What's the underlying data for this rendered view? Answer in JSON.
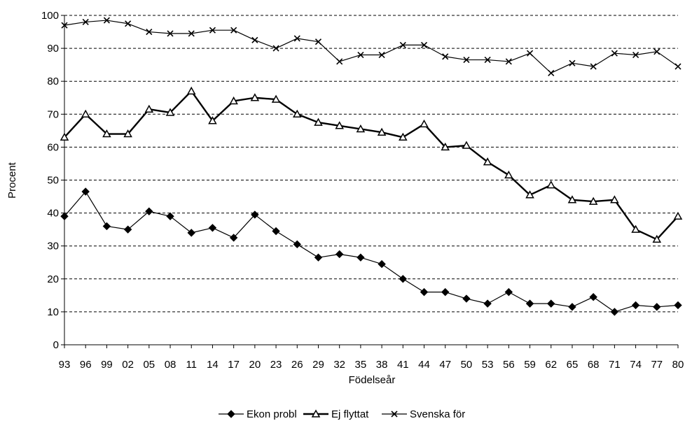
{
  "chart_data": {
    "type": "line",
    "title": "",
    "xlabel": "Födelseår",
    "ylabel": "Procent",
    "ylim": [
      0,
      100
    ],
    "yticks": [
      "0",
      "10",
      "20",
      "30",
      "40",
      "50",
      "60",
      "70",
      "80",
      "90",
      "100"
    ],
    "grid": "horizontal dashed",
    "legend_position": "bottom",
    "categories": [
      "93",
      "96",
      "99",
      "02",
      "05",
      "08",
      "11",
      "14",
      "17",
      "20",
      "23",
      "26",
      "29",
      "32",
      "35",
      "38",
      "41",
      "44",
      "47",
      "50",
      "53",
      "56",
      "59",
      "62",
      "65",
      "68",
      "71",
      "74",
      "77",
      "80"
    ],
    "series": [
      {
        "name": "Ekon probl",
        "marker": "diamond",
        "values": [
          39,
          46.5,
          36,
          35,
          40.5,
          39,
          34,
          35.5,
          32.5,
          39.5,
          34.5,
          30.5,
          26.5,
          27.5,
          26.5,
          24.5,
          20,
          16,
          16,
          14,
          12.5,
          16,
          12.5,
          12.5,
          11.5,
          14.5,
          10,
          12,
          11.5,
          12
        ]
      },
      {
        "name": "Ej flyttat",
        "marker": "triangle",
        "values": [
          63,
          70,
          64,
          64,
          71.5,
          70.5,
          77,
          68,
          74,
          75,
          74.5,
          70,
          67.5,
          66.5,
          65.5,
          64.5,
          63,
          67,
          60,
          60.5,
          55.5,
          51.5,
          45.5,
          48.5,
          44,
          43.5,
          44,
          35,
          32,
          39
        ]
      },
      {
        "name": "Svenska för",
        "marker": "x",
        "values": [
          97,
          98,
          98.5,
          97.5,
          95,
          94.5,
          94.5,
          95.5,
          95.5,
          92.5,
          90,
          93,
          92,
          86,
          88,
          88,
          91,
          91,
          87.5,
          86.5,
          86.5,
          86,
          88.5,
          82.5,
          85.5,
          84.5,
          88.5,
          88,
          89,
          84.5
        ]
      }
    ]
  }
}
